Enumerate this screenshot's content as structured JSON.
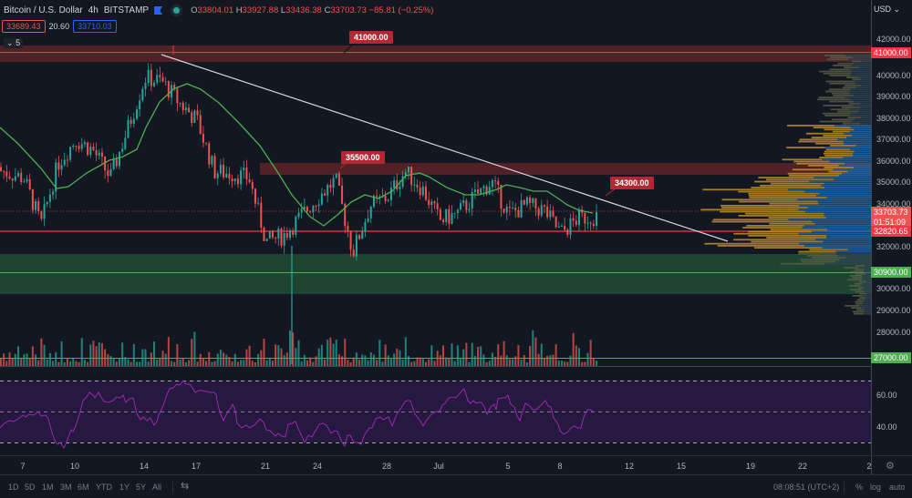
{
  "header": {
    "symbol": "Bitcoin / U.S. Dollar",
    "interval": "4h",
    "exchange": "BITSTAMP",
    "ohlc": {
      "o_label": "O",
      "o": "33804.01",
      "h_label": "H",
      "h": "33927.88",
      "l_label": "L",
      "l": "33436.38",
      "c_label": "C",
      "c": "33703.73",
      "change": "−85.81 (−0.25%)"
    },
    "bid": "33689.43",
    "spread": "20.60",
    "ask": "33710.03",
    "collapsed_indicators": "5"
  },
  "price_axis": {
    "currency": "USD",
    "ticks": [
      "42000.00",
      "41000.00",
      "40000.00",
      "39000.00",
      "38000.00",
      "37000.00",
      "36000.00",
      "35000.00",
      "34000.00",
      "32000.00",
      "30000.00",
      "29000.00",
      "28000.00",
      "27000.00"
    ],
    "tags": [
      {
        "label": "41000.00",
        "color": "#f23645"
      },
      {
        "label": "33703.73",
        "sub": "01:51:09",
        "color": "#ef5350"
      },
      {
        "label": "32820.65",
        "color": "#f23645"
      },
      {
        "label": "30900.00",
        "color": "#4caf50"
      },
      {
        "label": "27000.00",
        "color": "#4caf50"
      }
    ]
  },
  "rsi_axis": {
    "ticks": [
      "60.00",
      "40.00"
    ]
  },
  "annotations": [
    {
      "label": "41000.00"
    },
    {
      "label": "35500.00"
    },
    {
      "label": "34300.00"
    }
  ],
  "time_axis": {
    "ticks": [
      "7",
      "10",
      "14",
      "17",
      "21",
      "24",
      "28",
      "Jul",
      "5",
      "8",
      "12",
      "15",
      "19",
      "22",
      "2"
    ]
  },
  "bottom_bar": {
    "timeframes": [
      "1D",
      "5D",
      "1M",
      "3M",
      "6M",
      "YTD",
      "1Y",
      "5Y",
      "All"
    ],
    "clock": "08:08:51 (UTC+2)",
    "percent": "%",
    "log": "log",
    "auto": "auto"
  },
  "colors": {
    "background": "#131722",
    "up": "#26a69a",
    "down": "#ef5350",
    "ma": "#4caf50",
    "rsi": "#9c27b0",
    "resistance_zone": "#5a2228",
    "support_zone": "#1f4a33"
  },
  "chart_data": {
    "type": "candlestick",
    "title": "Bitcoin / U.S. Dollar · 4h · BITSTAMP",
    "xlabel": "",
    "ylabel": "USD",
    "ylim": [
      26500,
      42300
    ],
    "x_ticks": [
      "7",
      "10",
      "14",
      "17",
      "21",
      "24",
      "28",
      "Jul",
      "5",
      "8",
      "12",
      "15",
      "19",
      "22"
    ],
    "last": {
      "open": 33804.01,
      "high": 33927.88,
      "low": 33436.38,
      "close": 33703.73,
      "change": -85.81,
      "change_pct": -0.25
    },
    "horizontal_levels": [
      {
        "name": "Resistance zone",
        "from": 40600,
        "to": 41300,
        "line": 41000
      },
      {
        "name": "Resistance zone",
        "from": 35400,
        "to": 35900,
        "label": 35500
      },
      {
        "name": "Support line",
        "value": 32820.65
      },
      {
        "name": "Support zone",
        "from": 30000,
        "to": 31700,
        "line": 30900
      },
      {
        "name": "Volume level",
        "value": 27000
      }
    ],
    "trendline": {
      "from": {
        "x": "15 Jun",
        "y": 40900
      },
      "to": {
        "x": "17 Jul",
        "y": 32400
      },
      "label": 34300
    },
    "approx_close_path": [
      {
        "x": "5 Jun",
        "y": 36000
      },
      {
        "x": "7 Jun",
        "y": 35500
      },
      {
        "x": "8 Jun",
        "y": 33300
      },
      {
        "x": "9 Jun",
        "y": 36200
      },
      {
        "x": "10 Jun",
        "y": 37300
      },
      {
        "x": "11 Jun",
        "y": 36800
      },
      {
        "x": "12 Jun",
        "y": 35500
      },
      {
        "x": "13 Jun",
        "y": 37800
      },
      {
        "x": "14 Jun",
        "y": 40200
      },
      {
        "x": "15 Jun",
        "y": 40000
      },
      {
        "x": "16 Jun",
        "y": 39000
      },
      {
        "x": "17 Jun",
        "y": 38200
      },
      {
        "x": "18 Jun",
        "y": 35800
      },
      {
        "x": "19 Jun",
        "y": 35700
      },
      {
        "x": "20 Jun",
        "y": 35500
      },
      {
        "x": "21 Jun",
        "y": 32500
      },
      {
        "x": "22 Jun",
        "y": 32800
      },
      {
        "x": "23 Jun",
        "y": 33700
      },
      {
        "x": "24 Jun",
        "y": 34600
      },
      {
        "x": "25 Jun",
        "y": 35400
      },
      {
        "x": "26 Jun",
        "y": 32000
      },
      {
        "x": "27 Jun",
        "y": 34200
      },
      {
        "x": "28 Jun",
        "y": 34600
      },
      {
        "x": "29 Jun",
        "y": 35800
      },
      {
        "x": "30 Jun",
        "y": 35000
      },
      {
        "x": "1 Jul",
        "y": 33500
      },
      {
        "x": "2 Jul",
        "y": 33800
      },
      {
        "x": "3 Jul",
        "y": 34600
      },
      {
        "x": "4 Jul",
        "y": 35300
      },
      {
        "x": "5 Jul",
        "y": 33800
      },
      {
        "x": "6 Jul",
        "y": 34200
      },
      {
        "x": "7 Jul",
        "y": 34000
      },
      {
        "x": "8 Jul",
        "y": 32900
      },
      {
        "x": "9 Jul",
        "y": 33600
      },
      {
        "x": "10 Jul",
        "y": 33704
      }
    ],
    "indicators": [
      {
        "name": "Moving Average",
        "color": "#4caf50"
      },
      {
        "name": "Visible Range Volume Profile",
        "up_color": "#2196f3",
        "down_color": "#d8a02a"
      },
      {
        "name": "Volume"
      },
      {
        "name": "RSI",
        "levels": [
          70,
          50,
          30
        ],
        "axis_ticks": [
          60,
          40
        ]
      }
    ]
  }
}
